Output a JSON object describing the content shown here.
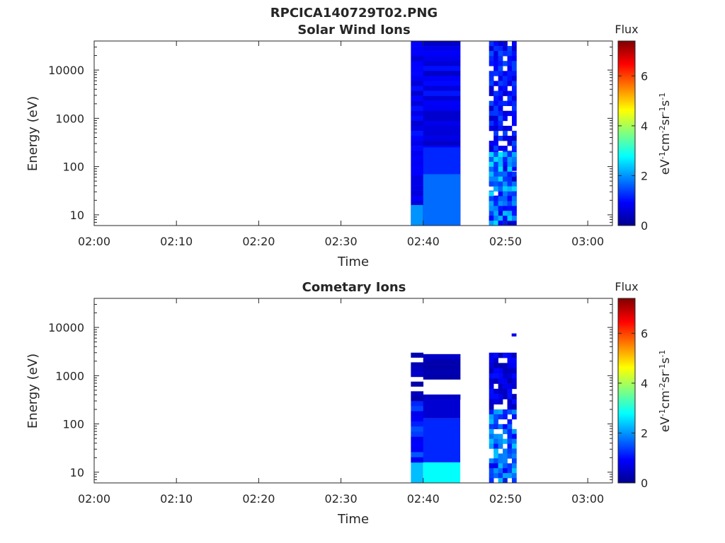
{
  "figure": {
    "title": "RPCICA140729T02.PNG"
  },
  "colorbar": {
    "label": "Flux",
    "unit_text": "eV",
    "unit_parts": [
      {
        "t": "eV",
        "sup": false
      },
      {
        "t": "-1",
        "sup": true
      },
      {
        "t": "cm",
        "sup": false
      },
      {
        "t": "-2",
        "sup": true
      },
      {
        "t": "sr",
        "sup": false
      },
      {
        "t": "-1",
        "sup": true
      },
      {
        "t": "s",
        "sup": false
      },
      {
        "t": "-1",
        "sup": true
      }
    ],
    "range": [
      0,
      7.4
    ],
    "ticks": [
      0,
      2,
      4,
      6
    ],
    "tick_labels": [
      "0",
      "2",
      "4",
      "6"
    ],
    "colormap": "jet"
  },
  "chart_data": [
    {
      "type": "heatmap",
      "title": "Solar Wind Ions",
      "xlabel": "Time",
      "ylabel": "Energy (eV)",
      "y_scale": "log",
      "ylim": [
        6,
        40000
      ],
      "xlim": [
        "02:00",
        "03:03"
      ],
      "x_ticks": [
        "02:00",
        "02:10",
        "02:20",
        "02:30",
        "02:40",
        "02:50",
        "03:00"
      ],
      "y_ticks": [
        10,
        100,
        1000,
        10000
      ],
      "y_tick_labels": [
        "10",
        "100",
        "1000",
        "10000"
      ],
      "colorbar_label": "Flux",
      "blocks": [
        {
          "t_start": "02:38:30",
          "t_end": "02:40:00",
          "e_low": 6,
          "e_high": 40000,
          "flux": 0.8,
          "style": "striated"
        },
        {
          "t_start": "02:38:30",
          "t_end": "02:40:00",
          "e_low": 6,
          "e_high": 16,
          "flux": 2.0,
          "style": "solid"
        },
        {
          "t_start": "02:40:00",
          "t_end": "02:44:30",
          "e_low": 6,
          "e_high": 40000,
          "flux": 0.8,
          "style": "striated"
        },
        {
          "t_start": "02:40:00",
          "t_end": "02:44:30",
          "e_low": 6,
          "e_high": 70,
          "flux": 1.7,
          "style": "solid"
        },
        {
          "t_start": "02:40:00",
          "t_end": "02:44:30",
          "e_low": 70,
          "e_high": 250,
          "flux": 1.2,
          "style": "solid"
        },
        {
          "t_start": "02:48:00",
          "t_end": "02:51:20",
          "e_low": 6,
          "e_high": 40000,
          "flux": 1.0,
          "style": "speckled"
        },
        {
          "t_start": "02:48:00",
          "t_end": "02:51:20",
          "e_low": 6,
          "e_high": 200,
          "flux": 1.8,
          "style": "speckled"
        }
      ]
    },
    {
      "type": "heatmap",
      "title": "Cometary Ions",
      "xlabel": "Time",
      "ylabel": "Energy (eV)",
      "y_scale": "log",
      "ylim": [
        6,
        40000
      ],
      "xlim": [
        "02:00",
        "03:03"
      ],
      "x_ticks": [
        "02:00",
        "02:10",
        "02:20",
        "02:30",
        "02:40",
        "02:50",
        "03:00"
      ],
      "y_ticks": [
        10,
        100,
        1000,
        10000
      ],
      "y_tick_labels": [
        "10",
        "100",
        "1000",
        "10000"
      ],
      "colorbar_label": "Flux",
      "blocks": [
        {
          "t_start": "02:38:30",
          "t_end": "02:40:00",
          "e_low": 6,
          "e_high": 16,
          "flux": 2.3,
          "style": "solid"
        },
        {
          "t_start": "02:38:30",
          "t_end": "02:40:00",
          "e_low": 16,
          "e_high": 300,
          "flux": 1.2,
          "style": "striated"
        },
        {
          "t_start": "02:38:30",
          "t_end": "02:40:00",
          "e_low": 300,
          "e_high": 3000,
          "flux": 0.4,
          "style": "striped"
        },
        {
          "t_start": "02:40:00",
          "t_end": "02:44:30",
          "e_low": 6,
          "e_high": 16,
          "flux": 2.8,
          "style": "solid"
        },
        {
          "t_start": "02:40:00",
          "t_end": "02:44:30",
          "e_low": 16,
          "e_high": 130,
          "flux": 1.2,
          "style": "solid"
        },
        {
          "t_start": "02:40:00",
          "t_end": "02:44:30",
          "e_low": 130,
          "e_high": 320,
          "flux": 0.6,
          "style": "solid"
        },
        {
          "t_start": "02:40:00",
          "t_end": "02:44:30",
          "e_low": 320,
          "e_high": 2800,
          "flux": 0.4,
          "style": "striped"
        },
        {
          "t_start": "02:48:00",
          "t_end": "02:51:20",
          "e_low": 6,
          "e_high": 200,
          "flux": 1.6,
          "style": "speckled"
        },
        {
          "t_start": "02:48:00",
          "t_end": "02:51:20",
          "e_low": 200,
          "e_high": 3000,
          "flux": 0.7,
          "style": "speckled"
        },
        {
          "t_start": "02:50:45",
          "t_end": "02:51:20",
          "e_low": 6500,
          "e_high": 7500,
          "flux": 0.8,
          "style": "solid"
        }
      ]
    }
  ]
}
